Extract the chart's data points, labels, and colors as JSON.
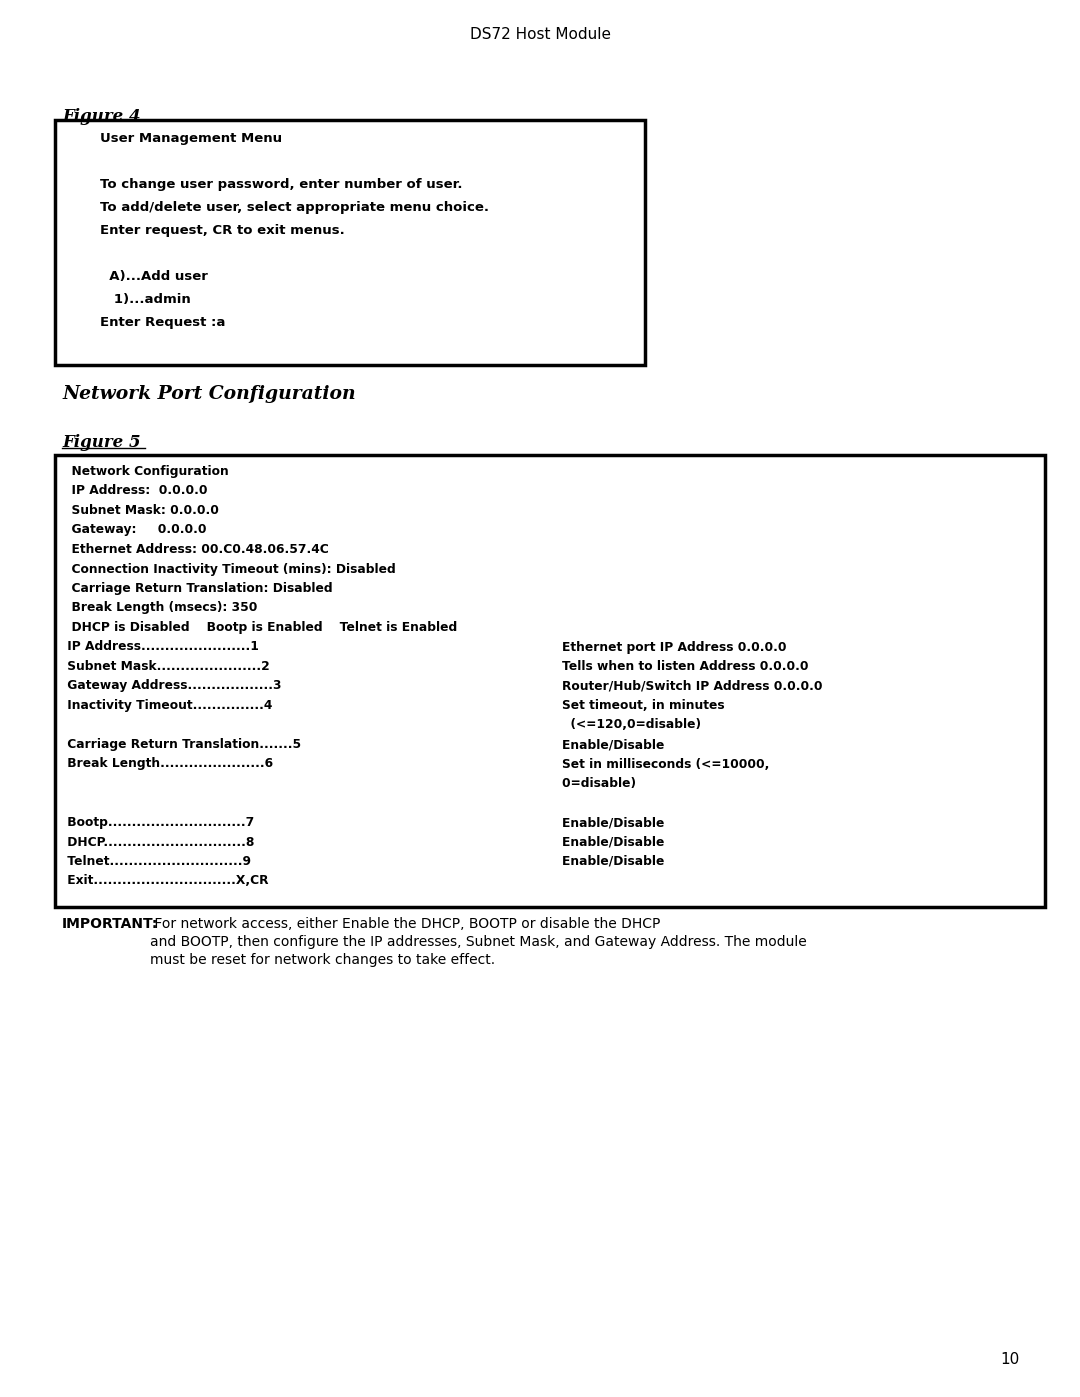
{
  "page_title": "DS72 Host Module",
  "page_number": "10",
  "background_color": "#ffffff",
  "figure4_label": "Figure 4",
  "figure4_content": [
    "        User Management Menu",
    "",
    "        To change user password, enter number of user.",
    "        To add/delete user, select appropriate menu choice.",
    "        Enter request, CR to exit menus.",
    "",
    "          A)...Add user",
    "           1)...admin",
    "        Enter Request :a"
  ],
  "section_title": "Network Port Configuration",
  "figure5_label": "Figure 5",
  "figure5_content_left": [
    "  Network Configuration",
    "  IP Address:  0.0.0.0",
    "  Subnet Mask: 0.0.0.0",
    "  Gateway:     0.0.0.0",
    "  Ethernet Address: 00.C0.48.06.57.4C",
    "  Connection Inactivity Timeout (mins): Disabled",
    "  Carriage Return Translation: Disabled",
    "  Break Length (msecs): 350",
    "  DHCP is Disabled    Bootp is Enabled    Telnet is Enabled",
    " IP Address.......................1",
    " Subnet Mask......................2",
    " Gateway Address..................3",
    " Inactivity Timeout...............4",
    "",
    " Carriage Return Translation.......5",
    " Break Length......................6",
    "",
    "",
    " Bootp.............................7",
    " DHCP..............................8",
    " Telnet............................9",
    " Exit..............................X,CR"
  ],
  "figure5_content_right": [
    "",
    "",
    "",
    "",
    "",
    "",
    "",
    "",
    "",
    "    Ethernet port IP Address 0.0.0.0",
    "    Tells when to listen Address 0.0.0.0",
    "    Router/Hub/Switch IP Address 0.0.0.0",
    "    Set timeout, in minutes",
    "      (<=120,0=disable)",
    "    Enable/Disable",
    "    Set in milliseconds (<=10000,",
    "    0=disable)",
    "",
    "    Enable/Disable",
    "    Enable/Disable",
    "    Enable/Disable",
    ""
  ],
  "important_bold": "IMPORTANT:",
  "important_rest": " For network access, either Enable the DHCP, BOOTP or disable the DHCP",
  "important_line2": "and BOOTP, then configure the IP addresses, Subnet Mask, and Gateway Address. The module",
  "important_line3": "must be reset for network changes to take effect."
}
